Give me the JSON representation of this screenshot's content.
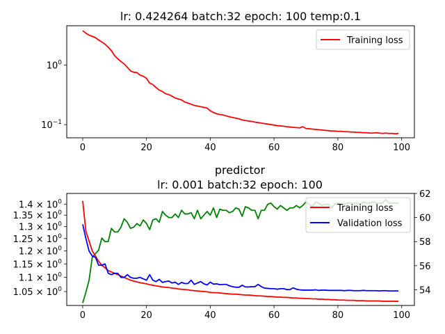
{
  "chart_data": [
    {
      "type": "line",
      "title": "lr: 0.424264 batch:32 epoch: 100 temp:0.1",
      "xlabel": "",
      "ylabel": "",
      "yscale": "log",
      "xlim": [
        -5,
        104
      ],
      "ylim": [
        0.06,
        4.6
      ],
      "x_ticks": [
        0,
        20,
        40,
        60,
        80,
        100
      ],
      "y_ticks": [
        {
          "value": 1.0,
          "mantissa": "10",
          "exp": "0"
        },
        {
          "value": 0.1,
          "mantissa": "10",
          "exp": "−1"
        }
      ],
      "legend": {
        "placement": "top-right",
        "entries": [
          "Training loss"
        ]
      },
      "grid": false,
      "series": [
        {
          "name": "Training loss",
          "color": "#ff0000",
          "values": [
            3.8,
            3.45,
            3.2,
            3.05,
            2.9,
            2.65,
            2.45,
            2.25,
            2.0,
            1.75,
            1.45,
            1.28,
            1.15,
            1.05,
            0.92,
            0.8,
            0.76,
            0.75,
            0.68,
            0.65,
            0.6,
            0.5,
            0.47,
            0.42,
            0.38,
            0.36,
            0.33,
            0.32,
            0.3,
            0.28,
            0.27,
            0.26,
            0.24,
            0.23,
            0.22,
            0.21,
            0.205,
            0.2,
            0.195,
            0.19,
            0.17,
            0.16,
            0.152,
            0.148,
            0.145,
            0.14,
            0.135,
            0.132,
            0.128,
            0.125,
            0.12,
            0.117,
            0.115,
            0.113,
            0.11,
            0.108,
            0.106,
            0.104,
            0.102,
            0.1,
            0.098,
            0.096,
            0.095,
            0.094,
            0.092,
            0.091,
            0.09,
            0.089,
            0.088,
            0.092,
            0.086,
            0.085,
            0.084,
            0.083,
            0.082,
            0.081,
            0.08,
            0.079,
            0.078,
            0.078,
            0.077,
            0.077,
            0.076,
            0.076,
            0.075,
            0.075,
            0.074,
            0.074,
            0.073,
            0.073,
            0.072,
            0.072,
            0.073,
            0.072,
            0.071,
            0.072,
            0.071,
            0.071,
            0.07,
            0.071
          ]
        }
      ]
    },
    {
      "type": "line",
      "title": "predictor\nlr: 0.001 batch:32 epoch: 100",
      "xlabel": "",
      "ylabel": "",
      "yscale": "log",
      "xlim": [
        -5,
        104
      ],
      "ylim": [
        1.003,
        1.45
      ],
      "x_ticks": [
        0,
        20,
        40,
        60,
        80,
        100
      ],
      "y_ticks": [
        {
          "value": 1.4,
          "mantissa": "1.4 × 10",
          "exp": "0"
        },
        {
          "value": 1.35,
          "mantissa": "1.35 × 10",
          "exp": "0"
        },
        {
          "value": 1.3,
          "mantissa": "1.3 × 10",
          "exp": "0"
        },
        {
          "value": 1.25,
          "mantissa": "1.25 × 10",
          "exp": "0"
        },
        {
          "value": 1.2,
          "mantissa": "1.2 × 10",
          "exp": "0"
        },
        {
          "value": 1.15,
          "mantissa": "1.15 × 10",
          "exp": "0"
        },
        {
          "value": 1.1,
          "mantissa": "1.1 × 10",
          "exp": "0"
        },
        {
          "value": 1.05,
          "mantissa": "1.05 × 10",
          "exp": "0"
        }
      ],
      "y2lim": [
        52.7,
        62.0
      ],
      "y2_ticks": [
        54,
        56,
        58,
        60,
        62
      ],
      "legend": {
        "placement": "top-right",
        "entries": [
          "Training loss",
          "Validation loss"
        ]
      },
      "grid": false,
      "series": [
        {
          "name": "Training loss",
          "axis": "left",
          "color": "#ff0000",
          "values": [
            1.415,
            1.28,
            1.24,
            1.2,
            1.18,
            1.16,
            1.145,
            1.135,
            1.125,
            1.12,
            1.115,
            1.11,
            1.105,
            1.1,
            1.095,
            1.09,
            1.087,
            1.084,
            1.081,
            1.079,
            1.077,
            1.074,
            1.072,
            1.07,
            1.068,
            1.066,
            1.065,
            1.064,
            1.062,
            1.061,
            1.059,
            1.058,
            1.057,
            1.056,
            1.054,
            1.053,
            1.052,
            1.051,
            1.05,
            1.049,
            1.047,
            1.046,
            1.046,
            1.045,
            1.044,
            1.043,
            1.042,
            1.041,
            1.041,
            1.04,
            1.039,
            1.038,
            1.038,
            1.037,
            1.036,
            1.035,
            1.035,
            1.034,
            1.033,
            1.033,
            1.032,
            1.031,
            1.031,
            1.03,
            1.03,
            1.029,
            1.028,
            1.028,
            1.027,
            1.027,
            1.026,
            1.026,
            1.025,
            1.025,
            1.024,
            1.024,
            1.023,
            1.023,
            1.022,
            1.022,
            1.021,
            1.021,
            1.021,
            1.02,
            1.02,
            1.02,
            1.019,
            1.019,
            1.019,
            1.018,
            1.018,
            1.018,
            1.018,
            1.018,
            1.017,
            1.017,
            1.017,
            1.017,
            1.017,
            1.017
          ]
        },
        {
          "name": "Validation loss",
          "axis": "left",
          "color": "#0000ff",
          "values": [
            1.31,
            1.25,
            1.2,
            1.18,
            1.175,
            1.145,
            1.145,
            1.15,
            1.115,
            1.11,
            1.115,
            1.115,
            1.1,
            1.1,
            1.11,
            1.1,
            1.097,
            1.097,
            1.1,
            1.095,
            1.09,
            1.11,
            1.09,
            1.085,
            1.093,
            1.082,
            1.085,
            1.087,
            1.08,
            1.083,
            1.075,
            1.082,
            1.078,
            1.078,
            1.09,
            1.075,
            1.08,
            1.085,
            1.077,
            1.073,
            1.083,
            1.076,
            1.077,
            1.074,
            1.075,
            1.075,
            1.07,
            1.067,
            1.065,
            1.065,
            1.072,
            1.066,
            1.066,
            1.067,
            1.067,
            1.075,
            1.067,
            1.062,
            1.061,
            1.06,
            1.06,
            1.058,
            1.06,
            1.06,
            1.057,
            1.057,
            1.063,
            1.058,
            1.056,
            1.055,
            1.055,
            1.055,
            1.055,
            1.056,
            1.054,
            1.055,
            1.055,
            1.054,
            1.054,
            1.054,
            1.054,
            1.054,
            1.053,
            1.054,
            1.054,
            1.053,
            1.053,
            1.053,
            1.054,
            1.053,
            1.053,
            1.053,
            1.053,
            1.052,
            1.053,
            1.053,
            1.052,
            1.052,
            1.052,
            1.052
          ]
        },
        {
          "name": "",
          "axis": "right",
          "color": "#008000",
          "values": [
            52.9,
            53.8,
            54.8,
            56.7,
            57.0,
            57.3,
            58.3,
            58.0,
            58.0,
            59.1,
            58.8,
            58.8,
            59.2,
            59.9,
            59.6,
            59.1,
            59.2,
            59.5,
            59.3,
            59.8,
            59.5,
            59.0,
            59.8,
            59.9,
            59.6,
            60.5,
            60.2,
            60.0,
            60.0,
            60.3,
            60.0,
            60.6,
            60.3,
            60.3,
            60.4,
            59.9,
            60.6,
            59.9,
            60.2,
            60.5,
            60.2,
            60.8,
            60.0,
            60.7,
            60.6,
            60.6,
            60.4,
            60.5,
            60.8,
            60.7,
            60.1,
            60.9,
            60.8,
            60.6,
            60.6,
            59.9,
            60.6,
            60.6,
            61.1,
            61.2,
            60.9,
            60.7,
            61.0,
            60.8,
            60.6,
            60.8,
            60.8,
            61.0,
            60.8,
            61.0,
            61.3,
            61.1,
            60.9,
            61.3,
            61.2,
            61.0,
            61.1,
            61.1,
            60.8,
            61.1,
            61.2,
            61.1,
            61.1,
            61.2,
            61.2,
            61.2,
            61.2,
            61.1,
            61.3,
            61.2,
            61.2,
            61.3,
            61.2,
            61.2,
            61.2,
            61.5,
            61.2,
            61.2,
            61.2,
            61.2
          ]
        }
      ]
    }
  ]
}
